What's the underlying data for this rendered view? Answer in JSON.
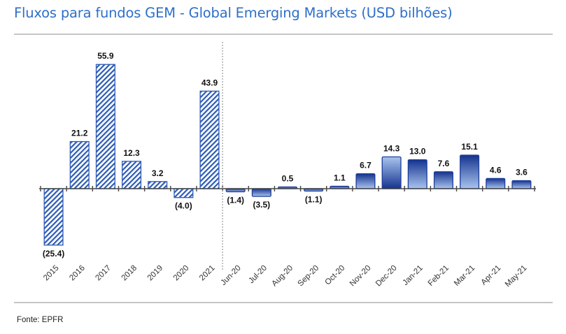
{
  "header": {
    "title": "Fluxos para fundos GEM - Global Emerging Markets (USD bilhões)"
  },
  "footer": {
    "source": "Fonte: EPFR"
  },
  "colors": {
    "title": "#2e6fc9",
    "bar_dark": "#15338f",
    "bar_light": "#a9c4ee",
    "hatch": "#2d5bb5",
    "rule": "#c5c5c5"
  },
  "chart_data": {
    "type": "bar",
    "title": "Fluxos para fundos GEM - Global Emerging Markets (USD bilhões)",
    "xlabel": "",
    "ylabel": "",
    "ylim": [
      -25.4,
      55.9
    ],
    "grid": false,
    "legend": "none",
    "separator_after": "2021",
    "categories": [
      "2015",
      "2016",
      "2017",
      "2018",
      "2019",
      "2020",
      "2021",
      "Jun-20",
      "Jul-20",
      "Aug-20",
      "Sep-20",
      "Oct-20",
      "Nov-20",
      "Dec-20",
      "Jan-21",
      "Feb-21",
      "Mar-21",
      "Apr-21",
      "May-21"
    ],
    "values": [
      -25.4,
      21.2,
      55.9,
      12.3,
      3.2,
      -4.0,
      43.9,
      -1.4,
      -3.5,
      0.5,
      -1.1,
      1.1,
      6.7,
      14.3,
      13.0,
      7.6,
      15.1,
      4.6,
      3.6
    ],
    "labels": [
      "(25.4)",
      "21.2",
      "55.9",
      "12.3",
      "3.2",
      "(4.0)",
      "43.9",
      "(1.4)",
      "(3.5)",
      "0.5",
      "(1.1)",
      "1.1",
      "6.7",
      "14.3",
      "13.0",
      "7.6",
      "15.1",
      "4.6",
      "3.6"
    ],
    "series_style": [
      "hatched",
      "hatched",
      "hatched",
      "hatched",
      "hatched",
      "hatched",
      "hatched",
      "gradient",
      "gradient",
      "gradient",
      "gradient",
      "gradient",
      "gradient",
      "gradient-reverse",
      "gradient",
      "gradient",
      "gradient",
      "gradient",
      "gradient"
    ],
    "source": "Fonte: EPFR"
  }
}
